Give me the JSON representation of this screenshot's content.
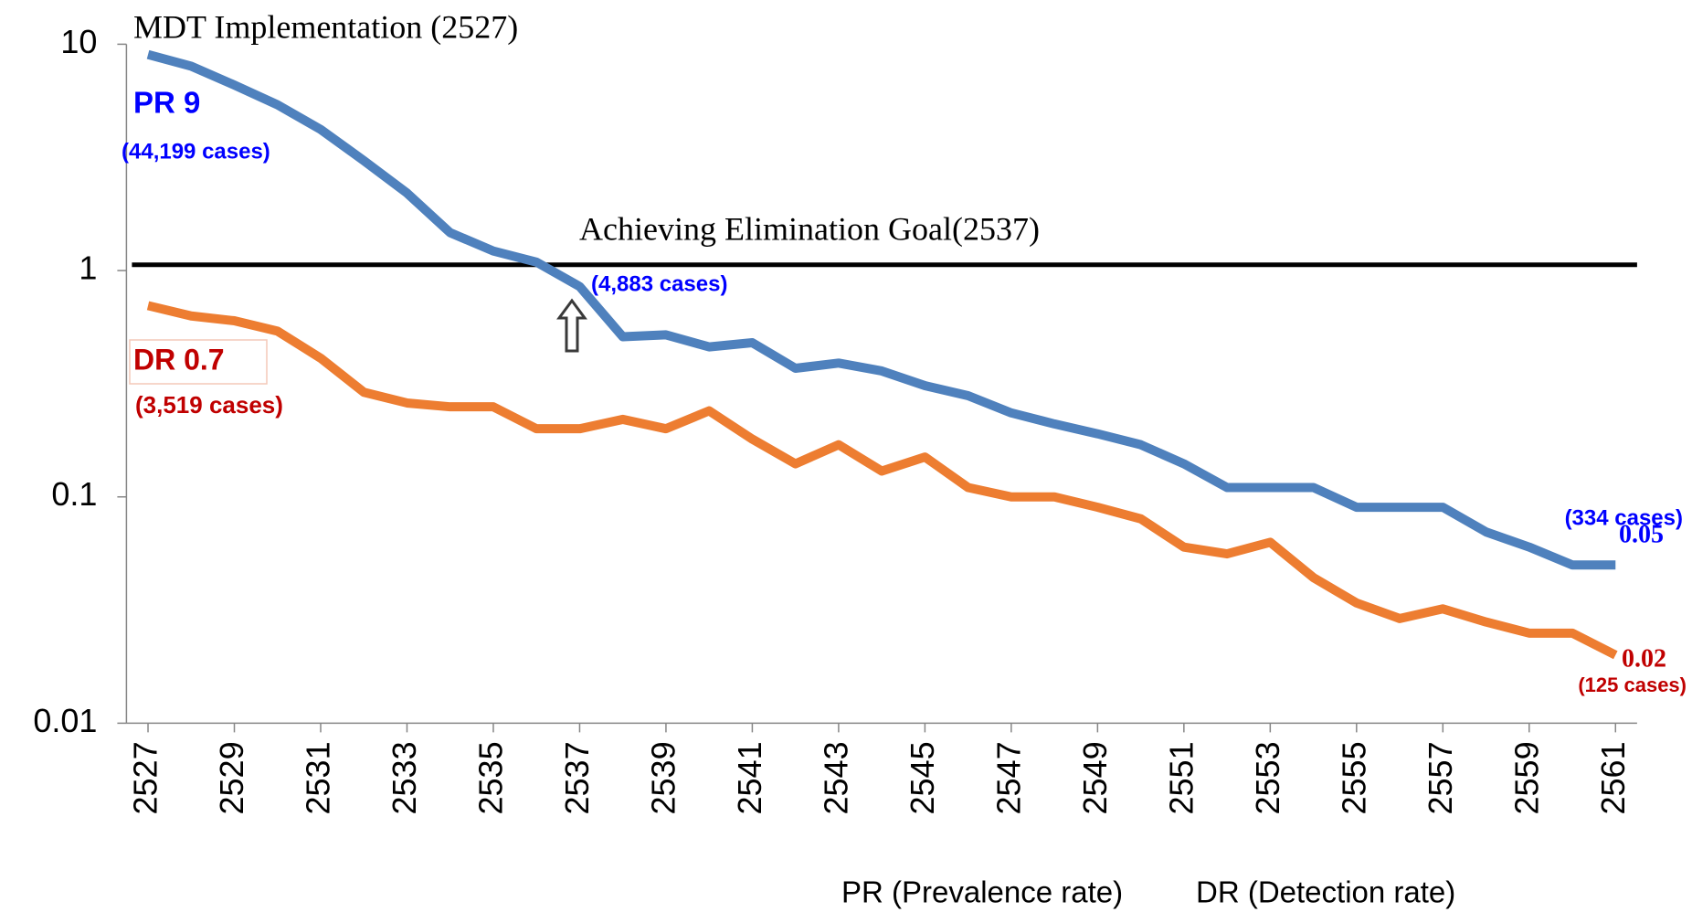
{
  "chart_data": {
    "type": "line",
    "x": [
      2527,
      2528,
      2529,
      2530,
      2531,
      2532,
      2533,
      2534,
      2535,
      2536,
      2537,
      2538,
      2539,
      2540,
      2541,
      2542,
      2543,
      2544,
      2545,
      2546,
      2547,
      2548,
      2549,
      2550,
      2551,
      2552,
      2553,
      2554,
      2555,
      2556,
      2557,
      2558,
      2559,
      2560,
      2561
    ],
    "series": [
      {
        "color": "#4f81bd",
        "values": [
          9,
          8.0,
          6.6,
          5.4,
          4.2,
          3.06,
          2.2,
          1.47,
          1.22,
          1.09,
          0.85,
          0.51,
          0.52,
          0.46,
          0.48,
          0.37,
          0.39,
          0.36,
          0.31,
          0.28,
          0.235,
          0.21,
          0.19,
          0.17,
          0.14,
          0.11,
          0.11,
          0.11,
          0.09,
          0.09,
          0.09,
          0.07,
          0.06,
          0.05,
          0.05
        ]
      },
      {
        "color": "#ed7d31",
        "values": [
          0.7,
          0.63,
          0.6,
          0.54,
          0.41,
          0.29,
          0.26,
          0.25,
          0.25,
          0.2,
          0.2,
          0.22,
          0.2,
          0.24,
          0.18,
          0.14,
          0.17,
          0.13,
          0.15,
          0.11,
          0.1,
          0.1,
          0.09,
          0.08,
          0.06,
          0.056,
          0.063,
          0.044,
          0.034,
          0.029,
          0.032,
          0.028,
          0.025,
          0.025,
          0.02
        ]
      }
    ],
    "xlim": [
      2526.5,
      2561.5
    ],
    "xticks": [
      2527,
      2529,
      2531,
      2533,
      2535,
      2537,
      2539,
      2541,
      2543,
      2545,
      2547,
      2549,
      2551,
      2553,
      2555,
      2557,
      2559,
      2561
    ],
    "ylim": [
      0.01,
      10
    ],
    "yticks": [
      0.01,
      0.1,
      1,
      10
    ],
    "log_y": true,
    "grid": false,
    "reference_line": {
      "value": 1.06,
      "color": "#000000",
      "label": "Achieving Elimination Goal(2537)"
    },
    "annotations": [
      "MDT Implementation (2527)",
      "PR 9",
      "(44,199 cases)",
      "(4,883 cases)",
      "DR 0.7",
      "(3,519 cases)",
      "(334 cases)",
      "0.05",
      "0.02",
      "(125 cases)"
    ],
    "footer": [
      "PR (Prevalence rate)",
      "DR (Detection rate)"
    ]
  }
}
